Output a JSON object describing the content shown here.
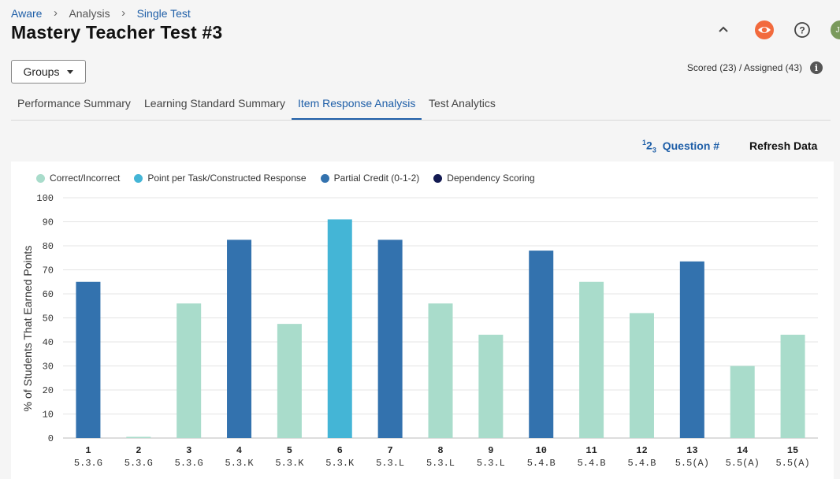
{
  "breadcrumb": {
    "root": "Aware",
    "middle": "Analysis",
    "current": "Single Test"
  },
  "page_title": "Mastery Teacher Test #3",
  "header": {
    "avatar_initials": "JT"
  },
  "groups_label": "Groups",
  "scored_text": "Scored (23) / Assigned (43)",
  "tabs": [
    {
      "label": "Performance Summary"
    },
    {
      "label": "Learning Standard Summary"
    },
    {
      "label": "Item Response Analysis"
    },
    {
      "label": "Test Analytics"
    }
  ],
  "actions": {
    "question_sup": "1",
    "question_sub": "2",
    "question_num": "3",
    "question_label": "Question #",
    "refresh_label": "Refresh Data"
  },
  "colors": {
    "correct": "#a9dccb",
    "point_per_task": "#44b5d6",
    "partial": "#3372ae",
    "dependency": "#131a52",
    "accent": "#1f5fa8"
  },
  "chart_data": {
    "type": "bar",
    "ylabel": "% of Students That Earned Points",
    "ylim": [
      0,
      100
    ],
    "yticks": [
      0,
      10,
      20,
      30,
      40,
      50,
      60,
      70,
      80,
      90,
      100
    ],
    "legend": [
      {
        "label": "Correct/Incorrect",
        "key": "correct"
      },
      {
        "label": "Point per Task/Constructed Response",
        "key": "point_per_task"
      },
      {
        "label": "Partial Credit (0-1-2)",
        "key": "partial"
      },
      {
        "label": "Dependency Scoring",
        "key": "dependency"
      }
    ],
    "bars": [
      {
        "q": "1",
        "std": "5.3.G",
        "value": 65,
        "kind": "partial"
      },
      {
        "q": "2",
        "std": "5.3.G",
        "value": 0.5,
        "kind": "correct"
      },
      {
        "q": "3",
        "std": "5.3.G",
        "value": 56,
        "kind": "correct"
      },
      {
        "q": "4",
        "std": "5.3.K",
        "value": 82.5,
        "kind": "partial"
      },
      {
        "q": "5",
        "std": "5.3.K",
        "value": 47.5,
        "kind": "correct"
      },
      {
        "q": "6",
        "std": "5.3.K",
        "value": 91,
        "kind": "point_per_task"
      },
      {
        "q": "7",
        "std": "5.3.L",
        "value": 82.5,
        "kind": "partial"
      },
      {
        "q": "8",
        "std": "5.3.L",
        "value": 56,
        "kind": "correct"
      },
      {
        "q": "9",
        "std": "5.3.L",
        "value": 43,
        "kind": "correct"
      },
      {
        "q": "10",
        "std": "5.4.B",
        "value": 78,
        "kind": "partial"
      },
      {
        "q": "11",
        "std": "5.4.B",
        "value": 65,
        "kind": "correct"
      },
      {
        "q": "12",
        "std": "5.4.B",
        "value": 52,
        "kind": "correct"
      },
      {
        "q": "13",
        "std": "5.5(A)",
        "value": 73.5,
        "kind": "partial"
      },
      {
        "q": "14",
        "std": "5.5(A)",
        "value": 30,
        "kind": "correct"
      },
      {
        "q": "15",
        "std": "5.5(A)",
        "value": 43,
        "kind": "correct"
      }
    ]
  }
}
